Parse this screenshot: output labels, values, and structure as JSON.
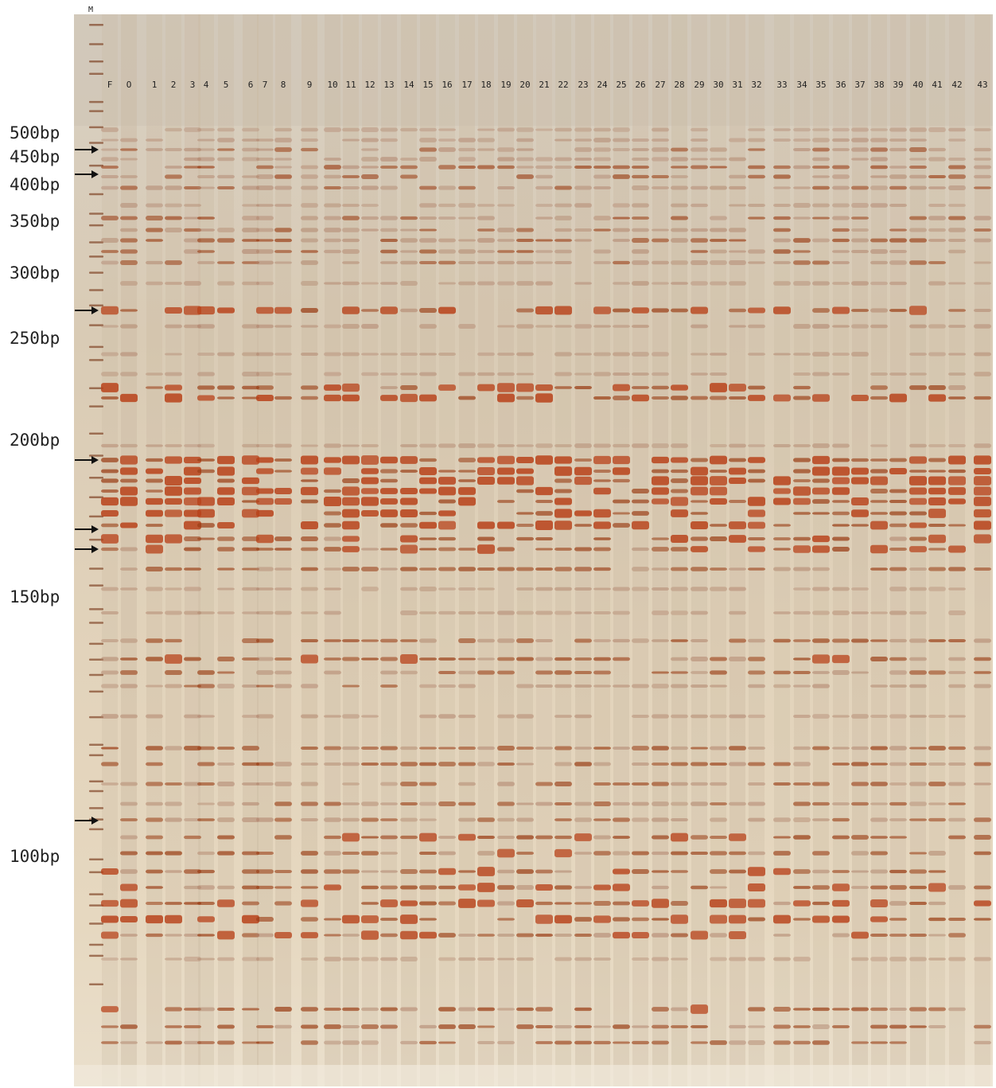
{
  "figure": {
    "marker_lane_label": "M",
    "lane_labels": [
      "F",
      "O",
      "1",
      "2",
      "3",
      "4",
      "5",
      "6",
      "7",
      "8",
      "9",
      "10",
      "11",
      "12",
      "13",
      "14",
      "15",
      "16",
      "17",
      "18",
      "19",
      "20",
      "21",
      "22",
      "23",
      "24",
      "25",
      "26",
      "27",
      "28",
      "29",
      "30",
      "31",
      "32",
      "33",
      "34",
      "35",
      "36",
      "37",
      "38",
      "39",
      "40",
      "41",
      "42",
      "43"
    ],
    "size_markers": [
      "500bp",
      "450bp",
      "400bp",
      "350bp",
      "300bp",
      "250bp",
      "200bp",
      "150bp",
      "100bp"
    ],
    "arrow_icons": [
      "arrow-right-icon",
      "arrow-right-icon",
      "arrow-right-icon",
      "arrow-right-icon",
      "arrow-right-icon",
      "arrow-right-icon",
      "arrow-right-icon"
    ],
    "colors": {
      "gel_background": "#ddcfb8",
      "band_dark": "#9a3d14",
      "band_strong": "#b8421a",
      "band_light": "#b0826a",
      "lane_streak": "#c9b8a0",
      "label_text": "#222222"
    }
  }
}
